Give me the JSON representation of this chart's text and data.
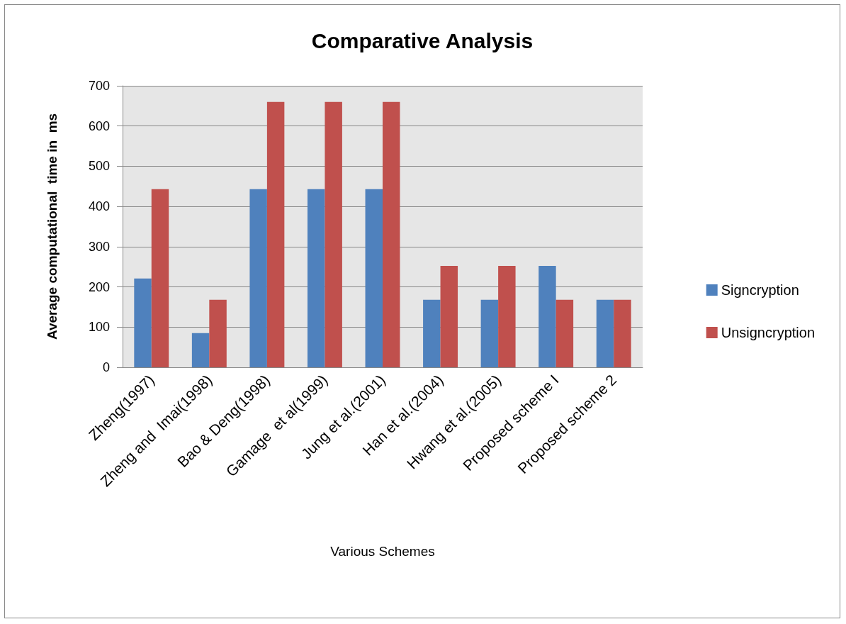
{
  "chart_data": {
    "type": "bar",
    "title": "Comparative Analysis",
    "xlabel": "Various Schemes",
    "ylabel": "Average computational  time in  ms",
    "categories": [
      "Zheng(1997)",
      "Zheng and  Imai(1998)",
      "Bao & Deng(1998)",
      "Gamage  et al(1999)",
      "Jung et al.(2001)",
      "Han et al.(2004)",
      "Hwang et al.(2005)",
      "Proposed scheme I",
      "Proposed scheme 2"
    ],
    "series": [
      {
        "name": "Signcryption",
        "color": "#4f81bd",
        "values": [
          221,
          85,
          443,
          443,
          443,
          168,
          168,
          252,
          168
        ]
      },
      {
        "name": "Unsigncryption",
        "color": "#c0504d",
        "values": [
          443,
          168,
          660,
          660,
          660,
          252,
          252,
          168,
          168
        ]
      }
    ],
    "ylim": [
      0,
      700
    ],
    "yticks": [
      0,
      100,
      200,
      300,
      400,
      500,
      600,
      700
    ],
    "grid": "y",
    "legend": "right"
  }
}
